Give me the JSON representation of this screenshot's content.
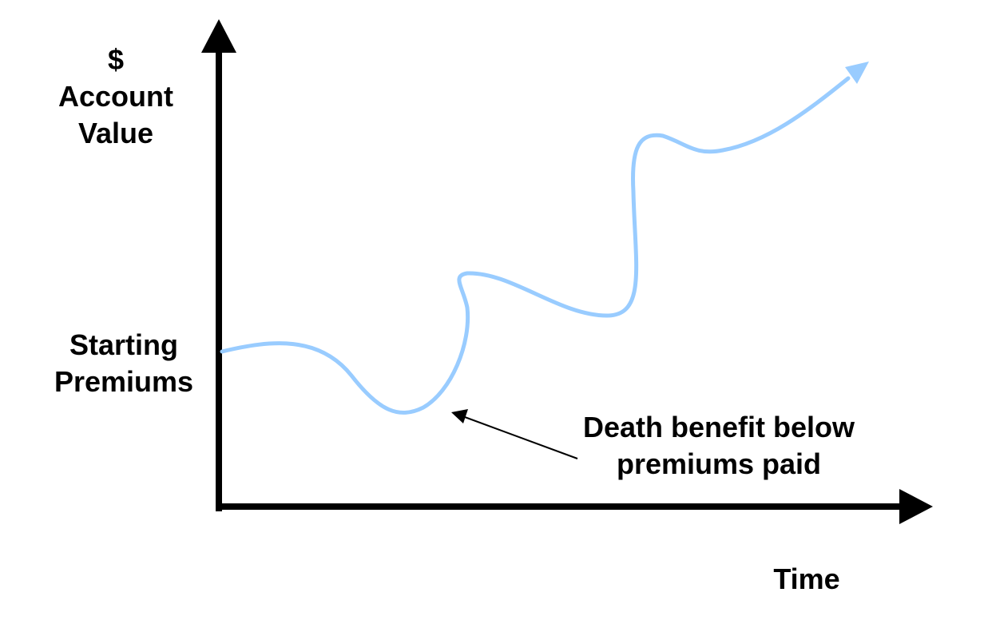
{
  "y_axis": {
    "symbol": "$",
    "line1": "Account",
    "line2": "Value"
  },
  "x_axis": {
    "label": "Time"
  },
  "start_label": {
    "line1": "Starting",
    "line2": "Premiums"
  },
  "annotation": {
    "line1": "Death benefit below",
    "line2": "premiums paid"
  },
  "colors": {
    "curve": "#99ccff",
    "axes": "#000000",
    "text": "#000000"
  }
}
